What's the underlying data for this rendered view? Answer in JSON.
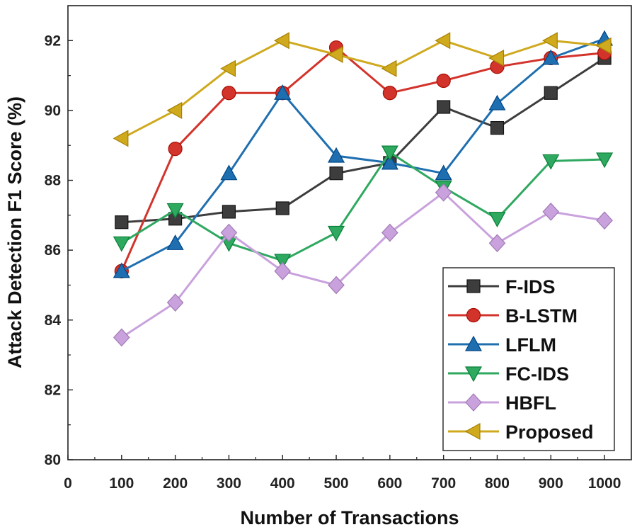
{
  "chart_data": {
    "type": "line",
    "title": "",
    "xlabel": "Number of Transactions",
    "ylabel": "Attack Detection F1 Score (%)",
    "xlim": [
      0,
      1050
    ],
    "ylim": [
      80,
      93
    ],
    "x_ticks": [
      0,
      100,
      200,
      300,
      400,
      500,
      600,
      700,
      800,
      900,
      1000
    ],
    "y_ticks": [
      80,
      82,
      84,
      86,
      88,
      90,
      92
    ],
    "x": [
      100,
      200,
      300,
      400,
      500,
      600,
      700,
      800,
      900,
      1000
    ],
    "legend_position": "bottom-right",
    "grid": false,
    "series": [
      {
        "name": "F-IDS",
        "color": "#3d3d3d",
        "marker": "square",
        "values": [
          86.8,
          86.9,
          87.1,
          87.2,
          88.2,
          88.5,
          90.1,
          89.5,
          90.5,
          91.5
        ]
      },
      {
        "name": "B-LSTM",
        "color": "#d2342c",
        "marker": "circle",
        "values": [
          85.4,
          88.9,
          90.5,
          90.5,
          91.8,
          90.5,
          90.85,
          91.25,
          91.5,
          91.65
        ]
      },
      {
        "name": "LFLM",
        "color": "#1f6fb0",
        "marker": "triangle-up",
        "values": [
          85.4,
          86.2,
          88.2,
          90.5,
          88.7,
          88.5,
          88.2,
          90.2,
          91.5,
          92.05
        ]
      },
      {
        "name": "FC-IDS",
        "color": "#2fa860",
        "marker": "triangle-down",
        "values": [
          86.2,
          87.15,
          86.2,
          85.7,
          86.5,
          88.8,
          87.8,
          86.9,
          88.55,
          88.6
        ]
      },
      {
        "name": "HBFL",
        "color": "#c9a2dd",
        "marker": "diamond",
        "values": [
          83.5,
          84.5,
          86.5,
          85.4,
          85.0,
          86.5,
          87.65,
          86.2,
          87.1,
          86.85
        ]
      },
      {
        "name": "Proposed",
        "color": "#cfa91e",
        "marker": "triangle-left",
        "values": [
          89.2,
          90.0,
          91.2,
          92.0,
          91.6,
          91.2,
          92.0,
          91.5,
          92.0,
          91.85
        ]
      }
    ]
  }
}
